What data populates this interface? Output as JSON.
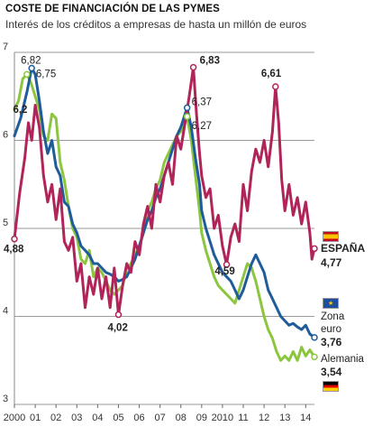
{
  "header": {
    "title": "COSTE DE FINANCIACIÓN DE LAS PYMES",
    "subtitle": "Interés de los créditos a empresas de hasta un millón de euros"
  },
  "colors": {
    "spain": "#b0245a",
    "eurozone": "#1f5c99",
    "germany": "#8cc63f",
    "grid": "#9a9a9a"
  },
  "icons": {
    "spain_flag": "spain-flag-icon",
    "euro_flag": "eu-flag-icon",
    "germany_flag": "germany-flag-icon"
  },
  "chart_data": {
    "type": "line",
    "title": "COSTE DE FINANCIACIÓN DE LAS PYMES",
    "subtitle": "Interés de los créditos a empresas de hasta un millón de euros",
    "xlim": [
      2000,
      2014.42
    ],
    "ylim": [
      3,
      7
    ],
    "yticks": [
      3,
      4,
      5,
      6,
      7
    ],
    "x_tick_labels": [
      "2000",
      "01",
      "02",
      "03",
      "04",
      "05",
      "06",
      "07",
      "08",
      "09",
      "2010",
      "11",
      "12",
      "13",
      "14"
    ],
    "grid": "horizontal",
    "series": [
      {
        "name": "ESPAÑA",
        "color": "#b0245a",
        "last_value": "4,77",
        "points": [
          [
            2000,
            4.88
          ],
          [
            2000.25,
            5.4
          ],
          [
            2000.5,
            5.8
          ],
          [
            2000.67,
            6.2
          ],
          [
            2000.83,
            6.0
          ],
          [
            2001,
            6.4
          ],
          [
            2001.2,
            6.15
          ],
          [
            2001.4,
            5.6
          ],
          [
            2001.6,
            5.3
          ],
          [
            2001.8,
            5.5
          ],
          [
            2002,
            5.1
          ],
          [
            2002.2,
            5.45
          ],
          [
            2002.4,
            4.85
          ],
          [
            2002.6,
            4.75
          ],
          [
            2002.8,
            4.9
          ],
          [
            2003,
            4.4
          ],
          [
            2003.2,
            4.6
          ],
          [
            2003.4,
            4.1
          ],
          [
            2003.6,
            4.45
          ],
          [
            2003.8,
            4.25
          ],
          [
            2004,
            4.55
          ],
          [
            2004.2,
            4.2
          ],
          [
            2004.4,
            4.45
          ],
          [
            2004.6,
            4.1
          ],
          [
            2004.8,
            4.55
          ],
          [
            2005,
            4.02
          ],
          [
            2005.2,
            4.35
          ],
          [
            2005.4,
            4.6
          ],
          [
            2005.6,
            4.5
          ],
          [
            2005.8,
            4.85
          ],
          [
            2006,
            4.7
          ],
          [
            2006.2,
            5.05
          ],
          [
            2006.4,
            5.25
          ],
          [
            2006.6,
            5.0
          ],
          [
            2006.8,
            5.5
          ],
          [
            2007,
            5.3
          ],
          [
            2007.2,
            5.6
          ],
          [
            2007.4,
            5.75
          ],
          [
            2007.6,
            5.5
          ],
          [
            2007.8,
            6.05
          ],
          [
            2008,
            5.9
          ],
          [
            2008.2,
            6.2
          ],
          [
            2008.4,
            6.5
          ],
          [
            2008.6,
            6.83
          ],
          [
            2008.75,
            6.3
          ],
          [
            2008.9,
            5.85
          ],
          [
            2009,
            5.6
          ],
          [
            2009.2,
            5.35
          ],
          [
            2009.4,
            5.45
          ],
          [
            2009.6,
            5.0
          ],
          [
            2009.8,
            5.15
          ],
          [
            2010,
            4.8
          ],
          [
            2010.2,
            4.59
          ],
          [
            2010.4,
            4.9
          ],
          [
            2010.6,
            5.05
          ],
          [
            2010.8,
            4.85
          ],
          [
            2011,
            5.5
          ],
          [
            2011.2,
            5.2
          ],
          [
            2011.4,
            5.65
          ],
          [
            2011.6,
            5.9
          ],
          [
            2011.8,
            5.75
          ],
          [
            2012,
            6.0
          ],
          [
            2012.2,
            5.7
          ],
          [
            2012.4,
            6.1
          ],
          [
            2012.55,
            6.61
          ],
          [
            2012.7,
            6.2
          ],
          [
            2012.85,
            5.55
          ],
          [
            2013,
            5.2
          ],
          [
            2013.2,
            5.5
          ],
          [
            2013.4,
            5.15
          ],
          [
            2013.6,
            5.35
          ],
          [
            2013.8,
            5.05
          ],
          [
            2014,
            5.3
          ],
          [
            2014.2,
            4.95
          ],
          [
            2014.3,
            4.65
          ],
          [
            2014.42,
            4.77
          ]
        ]
      },
      {
        "name": "Zona euro",
        "color": "#1f5c99",
        "last_value": "3,76",
        "points": [
          [
            2000,
            6.05
          ],
          [
            2000.3,
            6.25
          ],
          [
            2000.6,
            6.55
          ],
          [
            2000.83,
            6.82
          ],
          [
            2001,
            6.75
          ],
          [
            2001.2,
            6.45
          ],
          [
            2001.4,
            6.1
          ],
          [
            2001.6,
            5.85
          ],
          [
            2001.8,
            6.0
          ],
          [
            2002,
            5.7
          ],
          [
            2002.2,
            5.6
          ],
          [
            2002.4,
            5.3
          ],
          [
            2002.6,
            5.25
          ],
          [
            2002.8,
            5.05
          ],
          [
            2003,
            4.95
          ],
          [
            2003.2,
            4.8
          ],
          [
            2003.4,
            4.75
          ],
          [
            2003.6,
            4.7
          ],
          [
            2003.8,
            4.6
          ],
          [
            2004,
            4.6
          ],
          [
            2004.2,
            4.55
          ],
          [
            2004.4,
            4.5
          ],
          [
            2004.6,
            4.48
          ],
          [
            2004.8,
            4.45
          ],
          [
            2005,
            4.4
          ],
          [
            2005.2,
            4.42
          ],
          [
            2005.4,
            4.45
          ],
          [
            2005.6,
            4.55
          ],
          [
            2005.8,
            4.65
          ],
          [
            2006,
            4.8
          ],
          [
            2006.2,
            4.95
          ],
          [
            2006.4,
            5.1
          ],
          [
            2006.6,
            5.2
          ],
          [
            2006.8,
            5.35
          ],
          [
            2007,
            5.45
          ],
          [
            2007.2,
            5.6
          ],
          [
            2007.4,
            5.75
          ],
          [
            2007.6,
            5.9
          ],
          [
            2007.8,
            6.05
          ],
          [
            2008,
            6.15
          ],
          [
            2008.2,
            6.3
          ],
          [
            2008.3,
            6.37
          ],
          [
            2008.5,
            6.15
          ],
          [
            2008.7,
            5.8
          ],
          [
            2008.9,
            5.5
          ],
          [
            2009,
            5.2
          ],
          [
            2009.2,
            5.0
          ],
          [
            2009.4,
            4.85
          ],
          [
            2009.6,
            4.7
          ],
          [
            2009.8,
            4.6
          ],
          [
            2010,
            4.5
          ],
          [
            2010.2,
            4.45
          ],
          [
            2010.4,
            4.4
          ],
          [
            2010.6,
            4.3
          ],
          [
            2010.8,
            4.2
          ],
          [
            2011,
            4.3
          ],
          [
            2011.2,
            4.45
          ],
          [
            2011.4,
            4.6
          ],
          [
            2011.6,
            4.7
          ],
          [
            2011.8,
            4.6
          ],
          [
            2012,
            4.5
          ],
          [
            2012.2,
            4.3
          ],
          [
            2012.4,
            4.2
          ],
          [
            2012.6,
            4.1
          ],
          [
            2012.8,
            4.0
          ],
          [
            2013,
            3.95
          ],
          [
            2013.2,
            3.9
          ],
          [
            2013.4,
            3.92
          ],
          [
            2013.6,
            3.88
          ],
          [
            2013.8,
            3.85
          ],
          [
            2014,
            3.9
          ],
          [
            2014.2,
            3.8
          ],
          [
            2014.42,
            3.76
          ]
        ]
      },
      {
        "name": "Alemania",
        "color": "#8cc63f",
        "last_value": "3,54",
        "points": [
          [
            2000,
            6.35
          ],
          [
            2000.2,
            6.45
          ],
          [
            2000.4,
            6.7
          ],
          [
            2000.6,
            6.75
          ],
          [
            2000.8,
            6.65
          ],
          [
            2001,
            6.5
          ],
          [
            2001.2,
            6.35
          ],
          [
            2001.4,
            6.05
          ],
          [
            2001.6,
            6.0
          ],
          [
            2001.8,
            6.3
          ],
          [
            2002,
            6.25
          ],
          [
            2002.2,
            5.75
          ],
          [
            2002.4,
            5.55
          ],
          [
            2002.6,
            5.25
          ],
          [
            2002.8,
            5.0
          ],
          [
            2003,
            4.9
          ],
          [
            2003.2,
            4.65
          ],
          [
            2003.4,
            4.6
          ],
          [
            2003.6,
            4.75
          ],
          [
            2003.8,
            4.45
          ],
          [
            2004,
            4.55
          ],
          [
            2004.2,
            4.5
          ],
          [
            2004.4,
            4.4
          ],
          [
            2004.6,
            4.3
          ],
          [
            2004.8,
            4.25
          ],
          [
            2005,
            4.3
          ],
          [
            2005.2,
            4.35
          ],
          [
            2005.4,
            4.55
          ],
          [
            2005.6,
            4.6
          ],
          [
            2005.8,
            4.7
          ],
          [
            2006,
            4.8
          ],
          [
            2006.2,
            4.95
          ],
          [
            2006.4,
            5.2
          ],
          [
            2006.6,
            5.3
          ],
          [
            2006.8,
            5.45
          ],
          [
            2007,
            5.55
          ],
          [
            2007.2,
            5.75
          ],
          [
            2007.4,
            5.85
          ],
          [
            2007.6,
            5.95
          ],
          [
            2007.8,
            6.05
          ],
          [
            2008,
            6.1
          ],
          [
            2008.2,
            6.2
          ],
          [
            2008.3,
            6.27
          ],
          [
            2008.5,
            6.0
          ],
          [
            2008.7,
            5.6
          ],
          [
            2008.9,
            5.2
          ],
          [
            2009,
            4.95
          ],
          [
            2009.2,
            4.75
          ],
          [
            2009.4,
            4.6
          ],
          [
            2009.6,
            4.45
          ],
          [
            2009.8,
            4.35
          ],
          [
            2010,
            4.3
          ],
          [
            2010.2,
            4.25
          ],
          [
            2010.4,
            4.2
          ],
          [
            2010.6,
            4.15
          ],
          [
            2010.8,
            4.3
          ],
          [
            2011,
            4.45
          ],
          [
            2011.2,
            4.6
          ],
          [
            2011.4,
            4.55
          ],
          [
            2011.6,
            4.4
          ],
          [
            2011.8,
            4.2
          ],
          [
            2012,
            4.0
          ],
          [
            2012.2,
            3.85
          ],
          [
            2012.4,
            3.75
          ],
          [
            2012.6,
            3.6
          ],
          [
            2012.8,
            3.5
          ],
          [
            2013,
            3.55
          ],
          [
            2013.2,
            3.5
          ],
          [
            2013.4,
            3.6
          ],
          [
            2013.6,
            3.5
          ],
          [
            2013.8,
            3.65
          ],
          [
            2014,
            3.55
          ],
          [
            2014.2,
            3.62
          ],
          [
            2014.42,
            3.54
          ]
        ]
      }
    ],
    "annotations": [
      {
        "id": "es-start",
        "series": 0,
        "x": 2000,
        "y": 4.88,
        "text": "4,88",
        "bold": true,
        "marker": true
      },
      {
        "id": "es-2000",
        "series": 0,
        "x": 2000.67,
        "y": 6.2,
        "text": "6,2",
        "bold": true,
        "marker": false
      },
      {
        "id": "eu-2000",
        "series": 1,
        "x": 2000.83,
        "y": 6.82,
        "text": "6,82",
        "bold": false,
        "marker": true
      },
      {
        "id": "de-2000",
        "series": 2,
        "x": 2000.6,
        "y": 6.75,
        "text": "6,75",
        "bold": false,
        "marker": true
      },
      {
        "id": "es-2005",
        "series": 0,
        "x": 2005,
        "y": 4.02,
        "text": "4,02",
        "bold": true,
        "marker": true
      },
      {
        "id": "es-2008",
        "series": 0,
        "x": 2008.6,
        "y": 6.83,
        "text": "6,83",
        "bold": true,
        "marker": true
      },
      {
        "id": "eu-2008",
        "series": 1,
        "x": 2008.3,
        "y": 6.37,
        "text": "6,37",
        "bold": false,
        "marker": true
      },
      {
        "id": "de-2008",
        "series": 2,
        "x": 2008.3,
        "y": 6.27,
        "text": "6,27",
        "bold": false,
        "marker": true
      },
      {
        "id": "es-2010",
        "series": 0,
        "x": 2010.2,
        "y": 4.59,
        "text": "4,59",
        "bold": true,
        "marker": true
      },
      {
        "id": "es-2012",
        "series": 0,
        "x": 2012.55,
        "y": 6.61,
        "text": "6,61",
        "bold": true,
        "marker": true
      },
      {
        "id": "es-end",
        "series": 0,
        "x": 2014.42,
        "y": 4.77,
        "text": "",
        "bold": false,
        "marker": true
      },
      {
        "id": "eu-end",
        "series": 1,
        "x": 2014.42,
        "y": 3.76,
        "text": "",
        "bold": false,
        "marker": true
      },
      {
        "id": "de-end",
        "series": 2,
        "x": 2014.42,
        "y": 3.54,
        "text": "",
        "bold": false,
        "marker": true
      }
    ]
  }
}
